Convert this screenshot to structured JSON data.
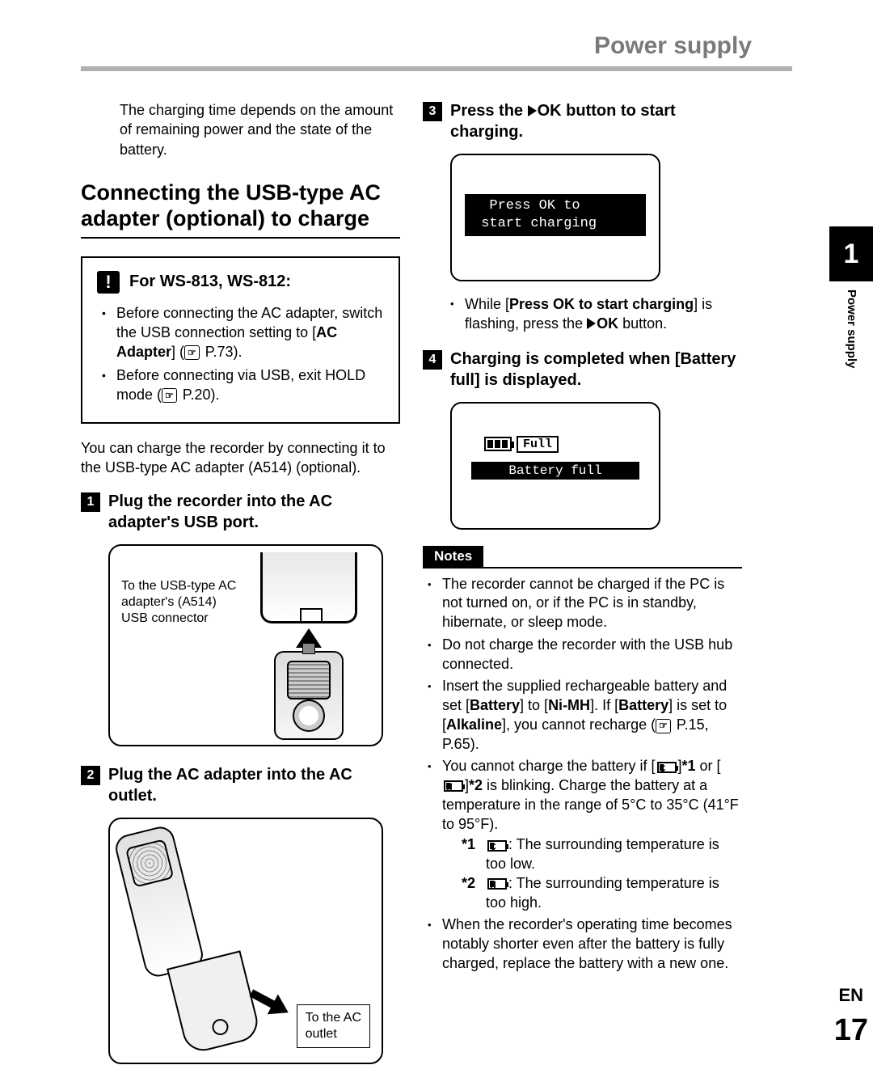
{
  "header": {
    "title": "Power supply"
  },
  "side": {
    "chapter": "1",
    "label": "Power supply",
    "lang": "EN",
    "page": "17"
  },
  "left": {
    "intro": "The charging time depends on the amount of remaining power and the state of the battery.",
    "section_heading_l1": "Connecting the USB-type AC",
    "section_heading_l2": "adapter (optional) to charge",
    "infobox": {
      "title": "For WS-813, WS-812:",
      "b1a": "Before connecting the AC adapter, switch the USB connection setting to [",
      "b1b": "AC Adapter",
      "b1c": "] (",
      "b1d": " P.73).",
      "b2a": "Before connecting via USB, exit HOLD mode (",
      "b2b": " P.20)."
    },
    "body": "You can charge the recorder by connecting it to the USB-type AC adapter (A514) (optional).",
    "step1": "Plug the recorder into the AC adapter's USB port.",
    "fig1": {
      "l1": "To the USB-type AC",
      "l2": "adapter's (A514)",
      "l3": "USB connector"
    },
    "step2": "Plug the AC adapter into the AC outlet.",
    "fig2": {
      "l1": "To the AC",
      "l2": "outlet"
    }
  },
  "right": {
    "step3a": "Press the ",
    "step3b": "OK button to start charging.",
    "screen1": {
      "l1": "  Press OK to",
      "l2": " start charging"
    },
    "sub3a": "While [",
    "sub3b": "Press OK to start charging",
    "sub3c": "] is flashing, press the ",
    "sub3d": "OK",
    "sub3e": " button.",
    "step4a": "Charging is completed when [",
    "step4b": "Battery full",
    "step4c": "] is displayed.",
    "screen2": {
      "full": "Full",
      "bar": "Battery full"
    },
    "notes_label": "Notes",
    "n1": "The recorder cannot be charged if the PC is not turned on, or if the PC is in standby, hibernate, or sleep mode.",
    "n2": "Do not charge the recorder with the USB hub connected.",
    "n3a": "Insert the supplied rechargeable battery and set [",
    "n3b": "Battery",
    "n3c": "] to [",
    "n3d": "Ni-MH",
    "n3e": "]. If [",
    "n3f": "Battery",
    "n3g": "] is set to [",
    "n3h": "Alkaline",
    "n3i": "], you cannot recharge (",
    "n3j": " P.15, P.65).",
    "n4a": "You cannot charge the battery if [",
    "n4b": "]",
    "n4c": "*1",
    "n4d": " or [",
    "n4e": "]",
    "n4f": "*2",
    "n4g": " is blinking. Charge the battery at a temperature in the range of 5°C to 35°C (41°F to 95°F).",
    "s1a": "*1",
    "s1b": ": The surrounding temperature is too low.",
    "s2a": "*2",
    "s2b": ": The surrounding temperature is too high.",
    "n5": "When the recorder's operating time becomes notably shorter even after the battery is fully charged, replace the battery with a new one."
  }
}
